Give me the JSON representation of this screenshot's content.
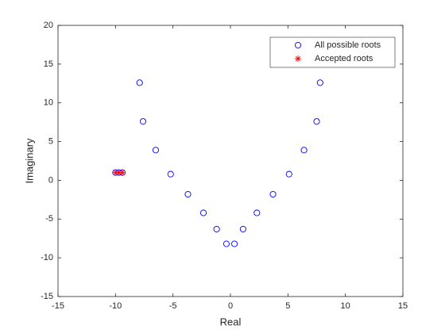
{
  "chart_data": {
    "type": "scatter",
    "xlabel": "Real",
    "ylabel": "Imaginary",
    "xlim": [
      -15,
      15
    ],
    "ylim": [
      -15,
      20
    ],
    "xticks": [
      -15,
      -10,
      -5,
      0,
      5,
      10,
      15
    ],
    "yticks": [
      -15,
      -10,
      -5,
      0,
      5,
      10,
      15,
      20
    ],
    "legend": "northeast",
    "series": [
      {
        "name": "All possible roots",
        "color": "#0000ff",
        "marker": "circle",
        "x": [
          -7.9,
          -7.6,
          -6.5,
          -5.2,
          -3.7,
          -2.35,
          -1.2,
          -0.35,
          0.35,
          1.1,
          2.3,
          3.7,
          5.1,
          6.4,
          7.5,
          7.8,
          -10,
          -9.7,
          -9.4
        ],
        "values": [
          12.6,
          7.6,
          3.9,
          0.8,
          -1.8,
          -4.2,
          -6.3,
          -8.2,
          -8.2,
          -6.3,
          -4.2,
          -1.8,
          0.8,
          3.9,
          7.6,
          12.6,
          1,
          1,
          1
        ]
      },
      {
        "name": "Accepted roots",
        "color": "#ff0000",
        "marker": "star",
        "x": [
          -10,
          -9.7,
          -9.4
        ],
        "values": [
          1,
          1,
          1
        ]
      }
    ]
  }
}
